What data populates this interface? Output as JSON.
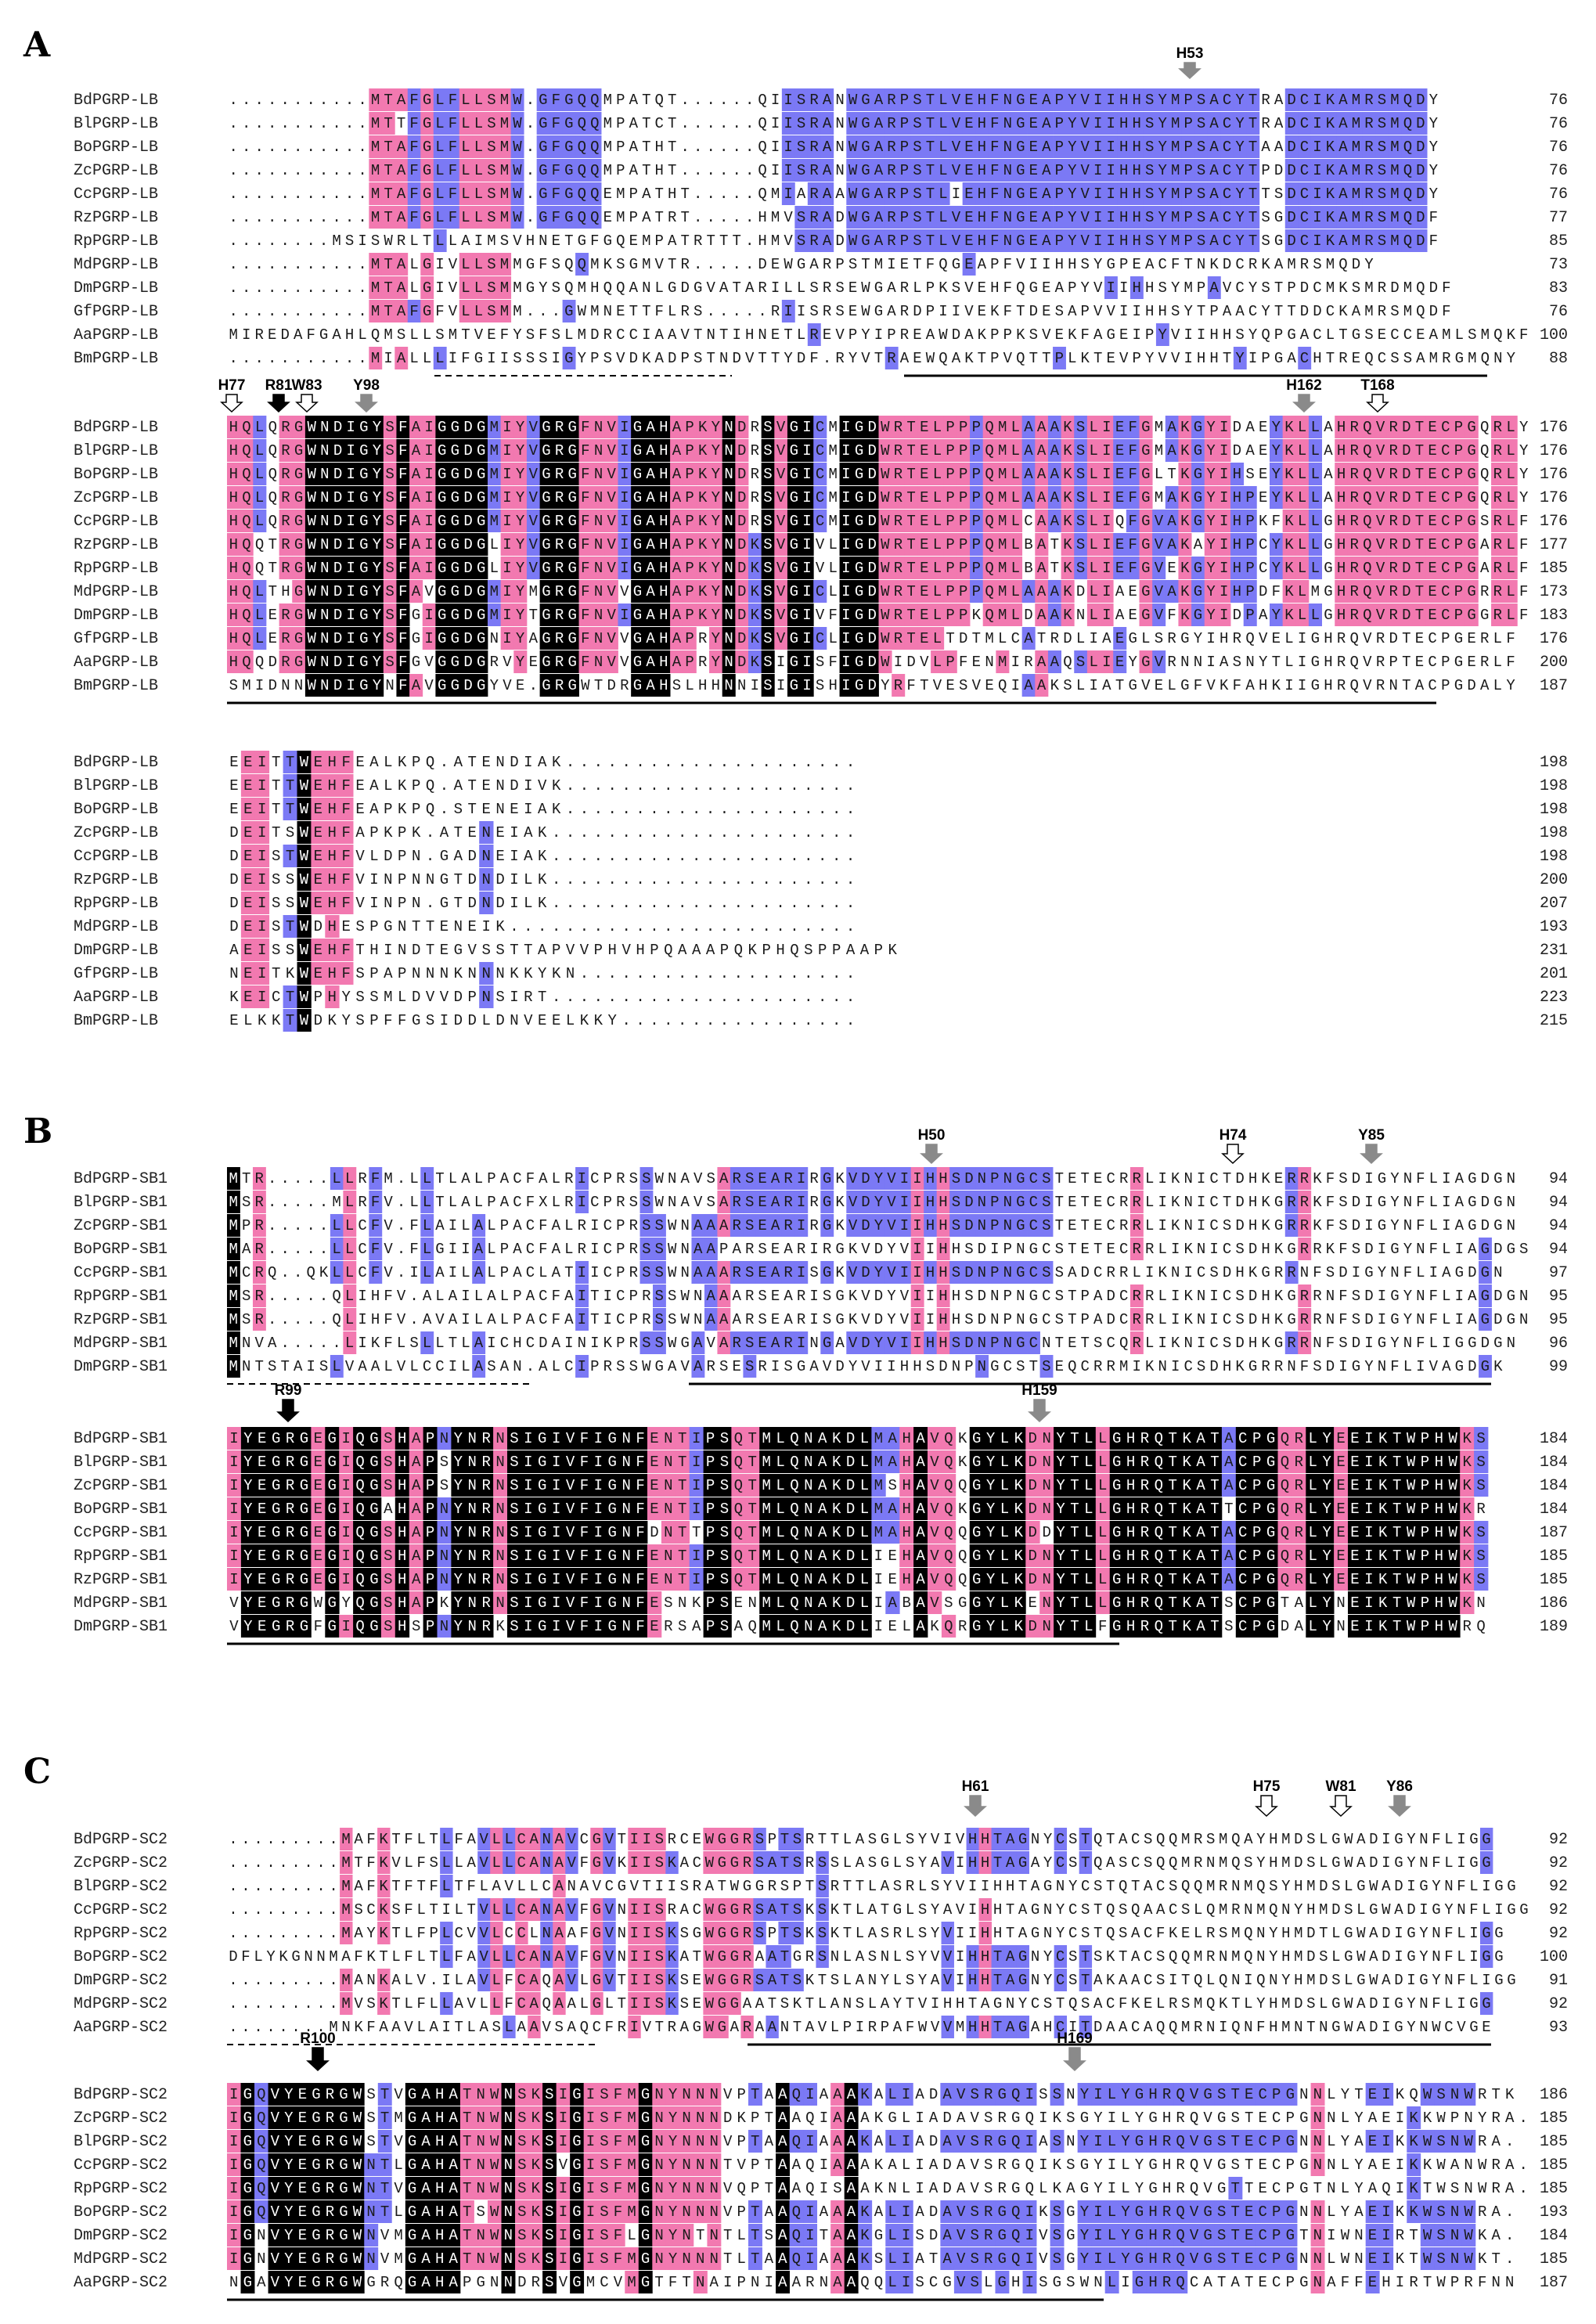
{
  "colors": {
    "identical": "#000000",
    "high": "#f279b0",
    "medium": "#7b79f5",
    "gray_marker": "#8a8a8a",
    "black_marker": "#000000",
    "open_marker": "#ffffff"
  },
  "panels": [
    {
      "letter": "A",
      "blocks": [
        {
          "names": [
            "BdPGRP-LB",
            "BlPGRP-LB",
            "BoPGRP-LB",
            "ZcPGRP-LB",
            "CcPGRP-LB",
            "RzPGRP-LB",
            "RpPGRP-LB",
            "MdPGRP-LB",
            "DmPGRP-LB",
            "GfPGRP-LB",
            "AaPGRP-LB",
            "BmPGRP-LB"
          ],
          "seqs": [
            "...........MTAFGLFLLSMW.GFGQQMPATQT......QIISRANWGARPSTLVEHFNGEAPYVIIHHSYMPSACYTRADCIKAMRSMQDY",
            "...........MTTFGLFLLSMW.GFGQQMPATCT......QIISRANWGARPSTLVEHFNGEAPYVIIHHSYMPSACYTRADCIKAMRSMQDY",
            "...........MTAFGLFLLSMW.GFGQQMPATHT......QIISRANWGARPSTLVEHFNGEAPYVIIHHSYMPSACYTAADCIKAMRSMQDY",
            "...........MTAFGLFLLSMW.GFGQQMPATHT......QIISRANWGARPSTLVEHFNGEAPYVIIHHSYMPSACYTPDDCIKAMRSMQDY",
            "...........MTAFGLFLLSMW.GFGQQEMPATHT.....QMIARAAWGARPSTLIEHFNGEAPYVIIHHSYMPSACYTTSDCIKAMRSMQDY",
            "...........MTAFGLFLLSMW.GFGQQEMPATRT.....HMVSRADWGARPSTLVEHFNGEAPYVIIHHSYMPSACYTSGDCIKAMRSMQDF",
            "........MSISWRLTLLAIMSVHNETGFGQEMPATRTTT.HMVSRADWGARPSTLVEHFNGEAPYVIIHHSYMPSACYTSGDCIKAMRSMQDF",
            "...........MTALGIVLLSMMGFSQQMKSGMVTR.....DEWGARPSTMIETFQGEAPFVIIHHSYGPEACFTNKDCRKAMRSMQDY",
            "...........MTALGIVLLSMMGYSQMHQQANLGDGVATARILLSRSEWGARLPKSVEHFQGEAPYVIIHHSYMPAVCYSTPDCMKSMRDMQDF",
            "...........MTAFGFVLLSMM...GWMNETTFLRS.....RIISRSEWGARDPIIVEKFTDESAPVVIIHHSYTPAACYTTDDCKAMRSMQDF",
            "MIREDAFGAHLQMSLLSMTVEFYSFSLMDRCCIAAVTNTIHNETLREVPYIPREAWDAKPPKSVEKFAGEIPYVIIHHSYQPGACLTGSECCEAMLSMQKF",
            "...........MIALLLIFGIISSSIGYPSVDKADPSTNDVTTYDF.RYVTRAEWQAKTPVQTTPLKTEVPYVVIHHTYIPGACHTREQCSSAMRGMQNY"
          ],
          "ends": [
            "76",
            "76",
            "76",
            "76",
            "76",
            "77",
            "85",
            "73",
            "83",
            "76",
            "100",
            "88"
          ]
        },
        {
          "names": [
            "BdPGRP-LB",
            "BlPGRP-LB",
            "BoPGRP-LB",
            "ZcPGRP-LB",
            "CcPGRP-LB",
            "RzPGRP-LB",
            "RpPGRP-LB",
            "MdPGRP-LB",
            "DmPGRP-LB",
            "GfPGRP-LB",
            "AaPGRP-LB",
            "BmPGRP-LB"
          ],
          "seqs": [
            "HQLQRGWNDIGYSFAIGGDGMIYVGRGFNVIGAHAPKYNDRSVGICMIGDWRTELPPPQMLAAAKSLIEFGMAKGYIDAEYKLLAHRQVRDTECPGQRLY",
            "HQLQRGWNDIGYSFAIGGDGMIYVGRGFNVIGAHAPKYNDRSVGICMIGDWRTELPPPQMLAAAKSLIEFGMAKGYIDAEYKLLAHRQVRDTECPGQRLY",
            "HQLQRGWNDIGYSFAIGGDGMIYVGRGFNVIGAHAPKYNDRSVGICMIGDWRTELPPPQMLAAAKSLIEFGLTKGYIHSEYKLLAHRQVRDTECPGQRLY",
            "HQLQRGWNDIGYSFAIGGDGMIYVGRGFNVIGAHAPKYNDRSVGICMIGDWRTELPPPQMLAAAKSLIEFGMAKGYIHPEYKLLAHRQVRDTECPGQRLY",
            "HQLQRGWNDIGYSFAIGGDGMIYVGRGFNVIGAHAPKYNDRSVGICMIGDWRTELPPPQMLCAAKSLIQFGVAKGYIHPKFKLLGHRQVRDTECPGSRLF",
            "HQQTRGWNDIGYSFAIGGDGLIYVGRGFNVIGAHAPKYNDKSVGIVLIGDWRTELPPPQMLBATKSLIEFGVAKAYIHPCYKLLGHRQVRDTECPGARLF",
            "HQQTRGWNDIGYSFAIGGDGLIYVGRGFNVIGAHAPKYNDKSVGIVLIGDWRTELPPPQMLBATKSLIEFGVEKGYIHPCYKLLGHRQVRDTECPGARLF",
            "HQLTHGWNDIGYSFAVGGDGMIYMGRGFNVVGAHAPKYNDKSVGICLIGDWRTELPPPQMLAAAKDLIAEGVAKGYIHPDFKLMGHRQVRDTECPGRRLF",
            "HQLERGWNDIGYSFGIGGDGMIYTGRGFNVIGAHAPKYNDKSVGIVFIGDWRTELPPKQMLDAAKNLIAEGVFKGYIDPAYKLLGHRQVRDTECPGGRLF",
            "HQLERGWNDIGYSFGIGGDGNIYAGRGFNVVGAHAPRYNDKSVGICLIGDWRTELTDTMLCATRDLIAEGLSRGYIHRQVELIGHRQVRDTECPGERLF",
            "HQQDRGWNDIGYSFGVGGDGRVYEGRGFNVVGAHAPRYNDKSIGISFIGDWIDVLPFENMIRAAQSLIEYGVRNNIASNYTLIGHRQVRPTECPGERLF",
            "SMIDNNWNDIGYNFAVGGDGYVE.GRGWTDRGAHSLHHNNISIGISHIGDYRFTVESVEQIAAKSLIATGVELGFVKFAHKIIGHRQVRNTACPGDALY"
          ],
          "ends": [
            "176",
            "176",
            "176",
            "176",
            "176",
            "177",
            "185",
            "173",
            "183",
            "176",
            "200",
            "187"
          ]
        },
        {
          "names": [
            "BdPGRP-LB",
            "BlPGRP-LB",
            "BoPGRP-LB",
            "ZcPGRP-LB",
            "CcPGRP-LB",
            "RzPGRP-LB",
            "RpPGRP-LB",
            "MdPGRP-LB",
            "DmPGRP-LB",
            "GfPGRP-LB",
            "AaPGRP-LB",
            "BmPGRP-LB"
          ],
          "seqs": [
            "EEITTWEHFEALKPQ.ATENDIAK.....................",
            "EEITTWEHFEALKPQ.ATENDIVK.....................",
            "EEITTWEHFEAPKPQ.STENEIAK.....................",
            "DEITSWEHFAPKPK.ATENEIAK......................",
            "DEISTWEHFVLDPN.GADNEIAK......................",
            "DEISSWEHFVINPNNGTDNDILK......................",
            "DEISSWEHFVINPN.GTDNDILK......................",
            "DEISTWDHESPGNTTENEIK.........................",
            "AEISSWEHFTHINDTEGVSSTTAPVVPHVHPQAAAPQKPHQSPPAAPK",
            "NEITKWEHFSPAPNNNKNNNKKYKN....................",
            "KEICTWPHYSSMLDVVDPNSIRT......................",
            "ELKKTWDKYSPFFGSIDDLDNVEELKKY................."
          ],
          "ends": [
            "198",
            "198",
            "198",
            "198",
            "198",
            "200",
            "207",
            "193",
            "231",
            "201",
            "223",
            "215"
          ]
        }
      ],
      "markers": [
        {
          "label": "H53",
          "style": "gray"
        },
        {
          "label": "H77",
          "style": "open"
        },
        {
          "label": "R81",
          "style": "black"
        },
        {
          "label": "W83",
          "style": "open"
        },
        {
          "label": "Y98",
          "style": "gray"
        },
        {
          "label": "H162",
          "style": "gray"
        },
        {
          "label": "T168",
          "style": "open"
        }
      ]
    },
    {
      "letter": "B",
      "blocks": [
        {
          "names": [
            "BdPGRP-SB1",
            "BlPGRP-SB1",
            "ZcPGRP-SB1",
            "BoPGRP-SB1",
            "CcPGRP-SB1",
            "RpPGRP-SB1",
            "RzPGRP-SB1",
            "MdPGRP-SB1",
            "DmPGRP-SB1"
          ],
          "seqs": [
            "MTR.....LLRFM.LLTLALPACFALRICPRSSWNAVSARSEARIRGKVDYVIIHHSDNPNGCSTETECRRLIKNICTDHKERRKFSDIGYNFLIAGDGN",
            "MSR.....MLRFV.LLTLALPACFXLRICPRSSWNAVSARSEARIRGKVDYVIIHHSDNPNGCSTETECRRLIKNICTDHKGRRKFSDIGYNFLIAGDGN",
            "MPR.....LLCFV.FLAILALPACFALRICPRSSWNAAARSEARIRGKVDYVIIHHSDNPNGCSTETECRRLIKNICSDHKGRRKFSDIGYNFLIAGDGN",
            "MAR.....LLCFV.FLGIIALPACFALRICPRSSWNAAPARSEARIRGKVDYVIIHHSDIPNGCSTETECRRLIKNICSDHKGRRKFSDIGYNFLIAGDGS",
            "MCRQ..QKLLCFV.ILAILALPACLATIICPRSSWNAAARSEARISGKVDYVIIHHSDNPNGCSSADCRRLIKNICSDHKGRRNFSDIGYNFLIAGDGN",
            "MSR.....QLIHFV.ALAILALPACFAITICPRSSWNAAARSEARISGKVDYVIIHHSDNPNGCSTPADCRRLIKNICSDHKGRRNFSDIGYNFLIAGDGN",
            "MSR.....QLIHFV.AVAILALPACFAITICPRSSWNAAARSEARISGKVDYVIIHHSDNPNGCSTPADCRRLIKNICSDHKGRRNFSDIGYNFLIAGDGN",
            "MNVA.....LIKFLSLLTLAICHCDAINIKPRSSWGAVARSEARINGAVDYVIIHHSDNPNGCNTETSCQRLIKNICSDHKGRRNFSDIGYNFLIGGDGN",
            "MNTSTAISLVAALVLCCILASAN.ALCIPRSSWGAVARSESRISGAVDYVIIHHSDNPNGCSTSEQCRRMIKNICSDHKGRRNFSDIGYNFLIVAGDGK"
          ],
          "ends": [
            "94",
            "94",
            "94",
            "94",
            "97",
            "95",
            "95",
            "96",
            "99"
          ]
        },
        {
          "names": [
            "BdPGRP-SB1",
            "BlPGRP-SB1",
            "ZcPGRP-SB1",
            "BoPGRP-SB1",
            "CcPGRP-SB1",
            "RpPGRP-SB1",
            "RzPGRP-SB1",
            "MdPGRP-SB1",
            "DmPGRP-SB1"
          ],
          "seqs": [
            "IYEGRGEGIQGSHAPNYNRNSIGIVFIGNFENTIPSQTMLQNAKDLMAHAVQKGYLKDNYTLLGHRQTKATACPGQRLYEEIKTWPHWKS",
            "IYEGRGEGIQGSHAPSYNRNSIGIVFIGNFENTIPSQTMLQNAKDLMAHAVQKGYLKDNYTLLGHRQTKATACPGQRLYEEIKTWPHWKS",
            "IYEGRGEGIQGSHAPSYNRNSIGIVFIGNFENTIPSQTMLQNAKDLMSHAVQQGYLKDNYTLLGHRQTKATACPGQRLYEEIKTWPHWKS",
            "IYEGRGEGIQGAHAPNYNRNSIGIVFIGNFENTIPSQTMLQNAKDLMAHAVQKGYLKDNYTLLGHRQTKATTCPGQRLYEEIKTWPHWKR",
            "IYEGRGEGIQGSHAPNYNRNSIGIVFIGNFDNTTPSQTMLQNAKDLMAHAVQQGYLKDDYTLLGHRQTKATACPGQRLYEEIKTWPHWKS",
            "IYEGRGEGIQGSHAPNYNRNSIGIVFIGNFENTIPSQTMLQNAKDLIEHAVQQGYLKDNYTLLGHRQTKATACPGQRLYEEIKTWPHWKS",
            "IYEGRGEGIQGSHAPNYNRNSIGIVFIGNFENTIPSQTMLQNAKDLIEHAVQQGYLKDNYTLLGHRQTKATACPGQRLYEEIKTWPHWKS",
            "VYEGRGWGYQGSHAPKYNRNSIGIVFIGNFESNKPSENMLQNAKDLIABAVSGGYLKENYTLLGHRQTKATSCPGTALYNEIKTWPHWKN",
            "VYEGRGFGIQGSHSPNYNRKSIGIVFIGNFERSAPSAQMLQNAKDLIELAKQRGYLKDNYTLFGHRQTKATSCPGDALYNEIKTWPHWRQ"
          ],
          "ends": [
            "184",
            "184",
            "184",
            "184",
            "187",
            "185",
            "185",
            "186",
            "189"
          ]
        }
      ],
      "markers": [
        {
          "label": "H50",
          "style": "gray"
        },
        {
          "label": "H74",
          "style": "open"
        },
        {
          "label": "Y85",
          "style": "gray"
        },
        {
          "label": "R99",
          "style": "black"
        },
        {
          "label": "H159",
          "style": "gray"
        }
      ]
    },
    {
      "letter": "C",
      "blocks": [
        {
          "names": [
            "BdPGRP-SC2",
            "ZcPGRP-SC2",
            "BlPGRP-SC2",
            "CcPGRP-SC2",
            "RpPGRP-SC2",
            "BoPGRP-SC2",
            "DmPGRP-SC2",
            "MdPGRP-SC2",
            "AaPGRP-SC2"
          ],
          "seqs": [
            ".........MAFKTFLTLFAVLLCANAVCGVTIISRCEWGGRSPTSRTTLASGLSYVIVHHTAGNYCSTQTACSQQMRSMQAYHMDSLGWADIGYNFLIGG",
            ".........MTFKVLFSLLAVLLCANAVFGVKIISKACWGGRSATSRSSLASGLSYAVIHHTAGAYCSTQASCSQQMRNMQSYHMDSLGWADIGYNFLIGG",
            ".........MAFKTFTFLTFLAVLLCANAVCGVTIISRATWGGRSPTSRTTLASRLSYVIIHHTAGNYCSTQTACSQQMRNMQSYHMDSLGWADIGYNFLIGG",
            ".........MSCKSFLTILTVLLCANAVFGVNIISRACWGGRSATSKSKTLATGLSYAVIHHTAGNYCSTQSQAACSLQMRNMQNYHMDSLGWADIGYNFLIGG",
            ".........MAYKTLFPLCVVLCCLNAAFGVNIISKSGWGGRSPTSKSKTLASRLSYVIIHHTAGNYCSTQSACFKELRSMQNYHMDTLGWADIGYNFLIGG",
            "DFLYKGNNMAFKTLFLTLFAVLLCANAVFGVNIISKATWGGRAATGRSNLASNLSYVVIHHTAGNYCSTSKTACSQQMRNMQNYHMDSLGWADIGYNFLIGG",
            ".........MANKALV.ILAVLFCAQAVLGVTIISKSEWGGRSATSKTSLANYLSYAVIHHTAGNYCSTAKAACSITQLQNIQNYHMDSLGWADIGYNFLIGG",
            ".........MVSKTLFLLAVLLFCAQAALGLTIISKSEWGGAATSKTLANSLAYTVIHHTAGNYCSTQSACFKELRSMQKTLYHMDSLGWADIGYNFLIGG",
            "........MNKFAAVLAITLASLAAVSAQCFRIVTRAGWGARAANTAVLPIRPAFWVVMHHTAGAHCITDAACAQQMRNIQNFHMNTNGWADIGYNWCVGE"
          ],
          "ends": [
            "92",
            "92",
            "92",
            "92",
            "92",
            "100",
            "91",
            "92",
            "93"
          ]
        },
        {
          "names": [
            "BdPGRP-SC2",
            "ZcPGRP-SC2",
            "BlPGRP-SC2",
            "CcPGRP-SC2",
            "RpPGRP-SC2",
            "BoPGRP-SC2",
            "DmPGRP-SC2",
            "MdPGRP-SC2",
            "AaPGRP-SC2"
          ],
          "seqs": [
            "IGQVYEGRGWSTVGAHATNWNSKSIGISFMGNYNNNVPTAAQIAAAKALIADAVSRGQISSNYILYGHRQVGSTECPGNNLYTEIKQWSNWRTK",
            "IGQVYEGRGWSTMGAHATNWNSKSIGISFMGNYNNNDKPTAAQIAAAKGLIADAVSRGQIKSGYILYGHRQVGSTECPGNNLYAEIKKWPNYRA.",
            "IGQVYEGRGWSTVGAHATNWNSKSIGISFMGNYNNNVPTAAQIAAAKALIADAVSRGQIASNYILYGHRQVGSTECPGNNLYAEIKKWSNWRA.",
            "IGQVYEGRGWNTLGAHATNWNSKSVGISFMGNYNNNTVPTAAQIAAAKALIADAVSRGQIKSGYILYGHRQVGSTECPGNNLYAEIKKWANWRA.",
            "IGQVYEGRGWNTVGAHATNWNSKSIGISFMGNYNNNVQPTAAQISAAKNLIADAVSRGQLKAGYILYGHRQVGTTECPGTNLYAQIKTWSNWRA.",
            "IGQVYEGRGWNTLGAHATSWNSKSIGISFMGNYNNNVPTAAQIAAAKALIADAVSRGQIKSGYILYGHRQVGSTECPGNNLYAEIKKWSNWRA.",
            "IGNVYEGRGWNVMGAHATNWNSKSIGISFLGNYNTNTLTSAQITAAKGLISDAVSRGQIVSGYILYGHRQVGSTECPGTNIWNEIRTWSNWKA.",
            "IGNVYEGRGWNVMGAHATNWNSKSIGISFMGNYNNNTLTAAQIAAAKSLIATAVSRGQIVSGYILYGHRQVGSTECPGNNLWNEIKTWSNWKT.",
            "NGAVYEGRGWGRQGAHAPGNNDRSVGMCVMGTFTNAIPNIAARNAAQQLISCGVSLGHISGSWNLIGHRQCATATECPGNAFFEHIRTWPRFNN"
          ],
          "ends": [
            "186",
            "185",
            "185",
            "185",
            "185",
            "193",
            "184",
            "185",
            "187"
          ]
        }
      ],
      "markers": [
        {
          "label": "H61",
          "style": "gray"
        },
        {
          "label": "H75",
          "style": "open"
        },
        {
          "label": "W81",
          "style": "open"
        },
        {
          "label": "Y86",
          "style": "gray"
        },
        {
          "label": "R100",
          "style": "black"
        },
        {
          "label": "H169",
          "style": "gray"
        }
      ]
    }
  ]
}
